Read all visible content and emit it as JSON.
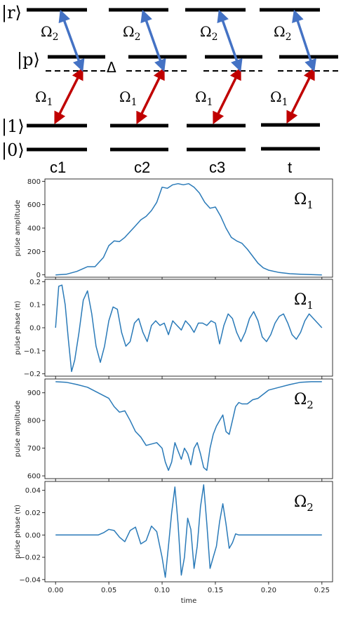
{
  "diagram": {
    "levels": {
      "r": "|r⟩",
      "p": "|p⟩",
      "one": "|1⟩",
      "zero": "|0⟩"
    },
    "detuning": "Δ",
    "omega1": "Ω",
    "omega1_sub": "1",
    "omega2": "Ω",
    "omega2_sub": "2",
    "qubits": [
      "c1",
      "c2",
      "c3",
      "t"
    ],
    "colors": {
      "omega1_arrow": "#c00000",
      "omega2_arrow": "#4472c4"
    }
  },
  "plots": {
    "line_color": "#2a7ab8",
    "xlabel": "time",
    "x_ticks": [
      "0.00",
      "0.05",
      "0.10",
      "0.15",
      "0.20",
      "0.25"
    ],
    "panels": [
      {
        "ylabel": "pulse amplitude",
        "label": "Ω",
        "label_sub": "1",
        "ylim": [
          -20,
          820
        ],
        "yticks": [
          0,
          200,
          400,
          600,
          800
        ],
        "ytick_labels": [
          "0",
          "200",
          "400",
          "600",
          "800"
        ]
      },
      {
        "ylabel": "pulse phase (π)",
        "label": "Ω",
        "label_sub": "1",
        "ylim": [
          -0.21,
          0.21
        ],
        "yticks": [
          -0.2,
          -0.1,
          0,
          0.1,
          0.2
        ],
        "ytick_labels": [
          "−0.2",
          "−0.1",
          "0.0",
          "0.1",
          "0.2"
        ]
      },
      {
        "ylabel": "pulse amplitude",
        "label": "Ω",
        "label_sub": "2",
        "ylim": [
          590,
          950
        ],
        "yticks": [
          600,
          700,
          800,
          900
        ],
        "ytick_labels": [
          "600",
          "700",
          "800",
          "900"
        ]
      },
      {
        "ylabel": "pulse phase (π)",
        "label": "Ω",
        "label_sub": "2",
        "ylim": [
          -0.042,
          0.048
        ],
        "yticks": [
          -0.04,
          -0.02,
          0,
          0.02,
          0.04
        ],
        "ytick_labels": [
          "−0.04",
          "−0.02",
          "0.00",
          "0.02",
          "0.04"
        ]
      }
    ]
  },
  "chart_data": [
    {
      "type": "line",
      "ylabel": "pulse amplitude",
      "series": [
        {
          "x": [
            0,
            0.01,
            0.02,
            0.03,
            0.037,
            0.045,
            0.05,
            0.055,
            0.06,
            0.065,
            0.07,
            0.075,
            0.08,
            0.085,
            0.09,
            0.095,
            0.1,
            0.105,
            0.11,
            0.115,
            0.12,
            0.125,
            0.13,
            0.135,
            0.14,
            0.145,
            0.15,
            0.155,
            0.16,
            0.165,
            0.17,
            0.175,
            0.18,
            0.185,
            0.19,
            0.195,
            0.2,
            0.21,
            0.22,
            0.23,
            0.24,
            0.25
          ],
          "y": [
            0,
            5,
            30,
            70,
            70,
            150,
            250,
            290,
            285,
            320,
            370,
            420,
            470,
            500,
            550,
            620,
            750,
            740,
            770,
            780,
            770,
            780,
            750,
            700,
            620,
            570,
            580,
            500,
            400,
            320,
            290,
            270,
            220,
            160,
            100,
            60,
            40,
            20,
            10,
            5,
            2,
            0
          ]
        }
      ]
    },
    {
      "type": "line",
      "ylabel": "pulse phase (π)",
      "series": [
        {
          "x": [
            0,
            0.003,
            0.006,
            0.009,
            0.012,
            0.015,
            0.018,
            0.022,
            0.026,
            0.03,
            0.034,
            0.038,
            0.042,
            0.046,
            0.05,
            0.054,
            0.058,
            0.062,
            0.066,
            0.07,
            0.074,
            0.078,
            0.082,
            0.086,
            0.09,
            0.094,
            0.098,
            0.102,
            0.106,
            0.11,
            0.114,
            0.118,
            0.122,
            0.126,
            0.13,
            0.134,
            0.138,
            0.142,
            0.146,
            0.15,
            0.154,
            0.158,
            0.162,
            0.166,
            0.17,
            0.174,
            0.178,
            0.182,
            0.186,
            0.19,
            0.194,
            0.198,
            0.202,
            0.206,
            0.21,
            0.214,
            0.218,
            0.222,
            0.226,
            0.23,
            0.234,
            0.238,
            0.242,
            0.246,
            0.25
          ],
          "y": [
            0,
            0.18,
            0.185,
            0.1,
            -0.05,
            -0.19,
            -0.14,
            -0.02,
            0.12,
            0.16,
            0.06,
            -0.08,
            -0.15,
            -0.08,
            0.03,
            0.09,
            0.08,
            -0.02,
            -0.08,
            -0.06,
            0.02,
            0.04,
            -0.02,
            -0.06,
            0.01,
            0.03,
            0.01,
            0.02,
            -0.03,
            0.03,
            0.01,
            -0.01,
            0.03,
            0.01,
            -0.02,
            0.02,
            0.02,
            0.01,
            0.03,
            0.02,
            -0.07,
            0.01,
            0.06,
            0.04,
            -0.02,
            -0.06,
            -0.02,
            0.04,
            0.07,
            0.03,
            -0.04,
            -0.06,
            -0.03,
            0.02,
            0.05,
            0.06,
            0.02,
            -0.03,
            -0.05,
            -0.02,
            0.03,
            0.06,
            0.04,
            0.02,
            0
          ]
        }
      ]
    },
    {
      "type": "line",
      "ylabel": "pulse amplitude",
      "series": [
        {
          "x": [
            0,
            0.01,
            0.02,
            0.03,
            0.04,
            0.05,
            0.055,
            0.06,
            0.065,
            0.07,
            0.075,
            0.08,
            0.085,
            0.09,
            0.095,
            0.1,
            0.103,
            0.106,
            0.109,
            0.112,
            0.115,
            0.118,
            0.121,
            0.124,
            0.127,
            0.13,
            0.133,
            0.136,
            0.139,
            0.142,
            0.145,
            0.148,
            0.151,
            0.154,
            0.157,
            0.16,
            0.163,
            0.166,
            0.169,
            0.172,
            0.175,
            0.18,
            0.185,
            0.19,
            0.2,
            0.21,
            0.22,
            0.23,
            0.24,
            0.25
          ],
          "y": [
            940,
            938,
            930,
            920,
            900,
            880,
            850,
            830,
            835,
            800,
            760,
            740,
            710,
            715,
            720,
            700,
            650,
            620,
            650,
            720,
            690,
            660,
            700,
            680,
            640,
            700,
            720,
            680,
            630,
            620,
            700,
            750,
            780,
            800,
            820,
            760,
            750,
            800,
            850,
            865,
            860,
            860,
            875,
            880,
            910,
            920,
            930,
            938,
            940,
            940
          ]
        }
      ]
    },
    {
      "type": "line",
      "ylabel": "pulse phase (π)",
      "xlabel": "time",
      "series": [
        {
          "x": [
            0,
            0.02,
            0.04,
            0.045,
            0.05,
            0.055,
            0.06,
            0.065,
            0.07,
            0.075,
            0.08,
            0.085,
            0.09,
            0.095,
            0.1,
            0.103,
            0.106,
            0.109,
            0.112,
            0.115,
            0.118,
            0.121,
            0.124,
            0.127,
            0.13,
            0.133,
            0.136,
            0.139,
            0.142,
            0.145,
            0.148,
            0.151,
            0.154,
            0.157,
            0.16,
            0.163,
            0.166,
            0.169,
            0.172,
            0.175,
            0.18,
            0.19,
            0.2,
            0.22,
            0.25
          ],
          "y": [
            0,
            0,
            0,
            0.002,
            0.005,
            0.004,
            -0.002,
            -0.006,
            0.004,
            0.007,
            -0.008,
            -0.005,
            0.008,
            0.003,
            -0.02,
            -0.038,
            -0.01,
            0.02,
            0.043,
            0.01,
            -0.036,
            -0.02,
            0.015,
            0.005,
            -0.03,
            -0.01,
            0.025,
            0.045,
            0.01,
            -0.03,
            -0.02,
            -0.01,
            0.012,
            0.028,
            0.01,
            -0.012,
            -0.007,
            0.001,
            0,
            0,
            0,
            0,
            0,
            0,
            0
          ]
        }
      ]
    }
  ]
}
